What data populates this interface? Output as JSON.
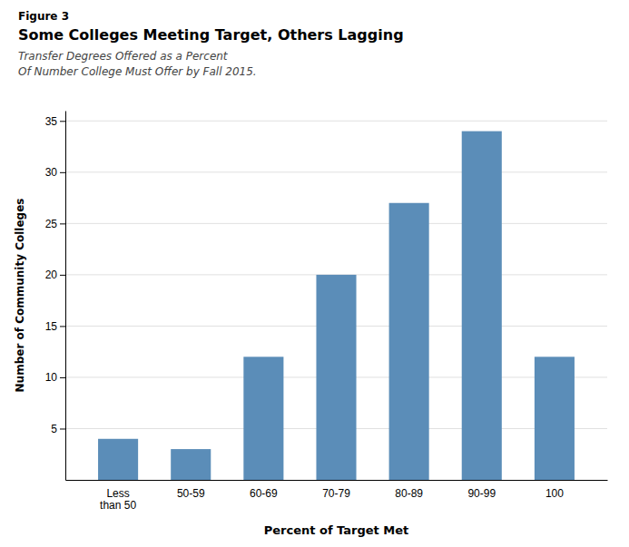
{
  "chart_data": {
    "type": "bar",
    "annotations": [
      "Figure 3"
    ],
    "title": "Some Colleges Meeting Target, Others Lagging",
    "subtitle": [
      "Transfer Degrees Offered as a Percent",
      "Of Number College Must Offer by Fall 2015."
    ],
    "xlabel": "Percent of Target Met",
    "ylabel": "Number of Community Colleges",
    "categories": [
      "Less\nthan 50",
      "50-59",
      "60-69",
      "70-79",
      "80-89",
      "90-99",
      "100"
    ],
    "values": [
      4,
      3,
      12,
      20,
      27,
      34,
      12
    ],
    "color": "#5B8DB8",
    "ylim": [
      0,
      36
    ],
    "yticks": [
      5,
      10,
      15,
      20,
      25,
      30,
      35
    ],
    "grid": true
  }
}
